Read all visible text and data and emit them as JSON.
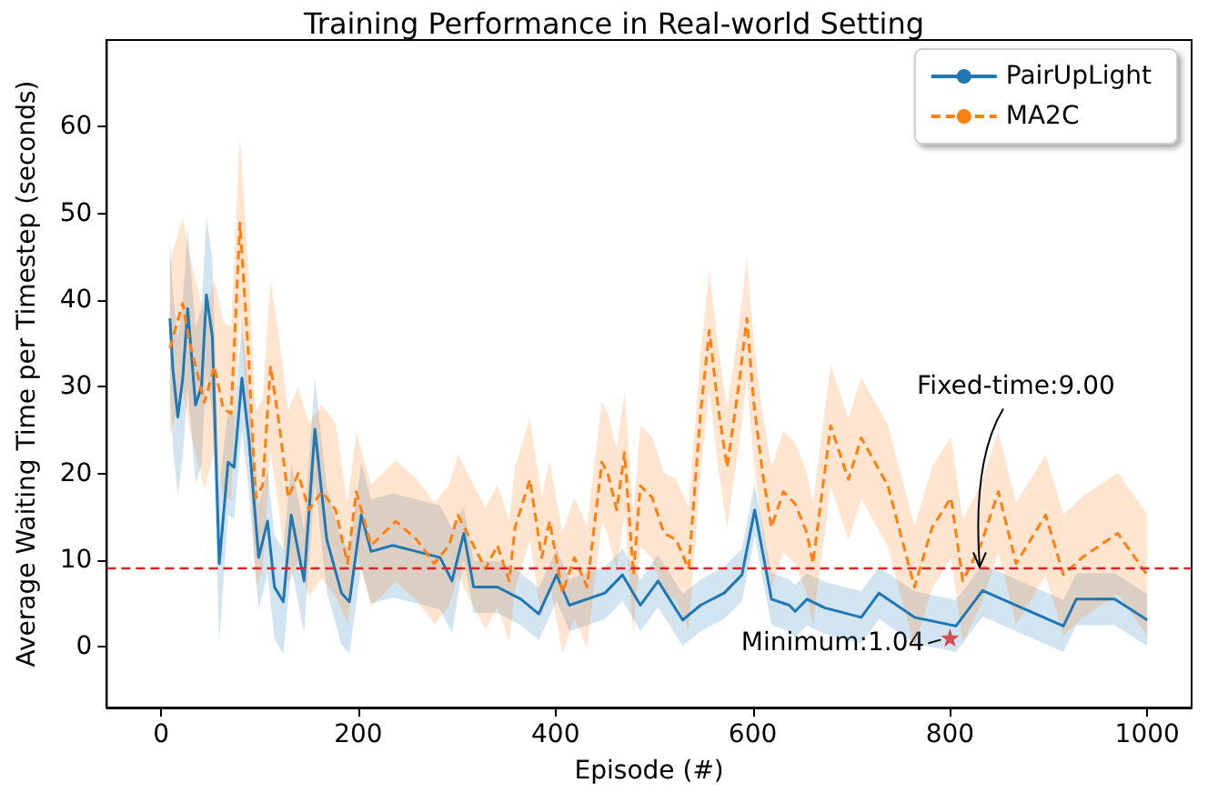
{
  "chart_data": {
    "type": "line",
    "title": "Training Performance in Real-world Setting",
    "xlabel": "Episode (#)",
    "ylabel": "Average Waiting Time per Timestep (seconds)",
    "xlim": [
      -55,
      1045
    ],
    "xticks": [
      0,
      200,
      400,
      600,
      800,
      1000
    ],
    "ylim": [
      -7,
      70
    ],
    "yticks": [
      0,
      10,
      20,
      30,
      40,
      50,
      60
    ],
    "grid": false,
    "legend": "top right",
    "marker": "none",
    "series": [
      {
        "name": "PairUpLight",
        "color": "#1f77b4",
        "line_style": "solid",
        "x": [
          9,
          12,
          17,
          22,
          27,
          35,
          41,
          46,
          52,
          59,
          68,
          74,
          82,
          89,
          99,
          108,
          115,
          124,
          132,
          145,
          156,
          168,
          183,
          191,
          203,
          213,
          235,
          259,
          283,
          295,
          307,
          317,
          341,
          365,
          383,
          401,
          414,
          450,
          468,
          486,
          504,
          529,
          547,
          571,
          589,
          602,
          619,
          637,
          643,
          655,
          673,
          710,
          728,
          764,
          806,
          833,
          867,
          915,
          928,
          967,
          1000
        ],
        "values": [
          37.9,
          32,
          26.5,
          31,
          39,
          27.9,
          30,
          40.6,
          35.8,
          9.6,
          21.3,
          20.7,
          31,
          24,
          10.3,
          14.5,
          6.9,
          5.2,
          15.2,
          7.6,
          25.1,
          12.4,
          6.2,
          5.2,
          15.2,
          11,
          11.7,
          11,
          10.3,
          7.6,
          13.1,
          6.9,
          6.9,
          5.5,
          3.8,
          8.3,
          4.8,
          6.2,
          8.3,
          4.8,
          7.6,
          3.1,
          4.8,
          6.2,
          8.3,
          15.8,
          5.5,
          4.8,
          4.1,
          5.5,
          4.5,
          3.4,
          6.2,
          3.4,
          2.4,
          6.5,
          4.8,
          2.4,
          5.5,
          5.5,
          3.1
        ],
        "lower": [
          28.9,
          23,
          17.5,
          22,
          30,
          18.9,
          21,
          31.6,
          26.8,
          0.6,
          15.3,
          14.7,
          25,
          18,
          4.3,
          8.5,
          0.9,
          -0.8,
          9.2,
          1.6,
          19.1,
          6.4,
          0.2,
          -0.8,
          9.2,
          5,
          5.7,
          5,
          4.3,
          1.6,
          10.1,
          3.9,
          3.9,
          2.5,
          0.8,
          5.3,
          1.8,
          3.2,
          5.3,
          1.8,
          4.6,
          0.1,
          1.8,
          3.2,
          5.3,
          12.8,
          2.5,
          1.8,
          1.1,
          2.5,
          1.5,
          0.4,
          3.2,
          0.4,
          -0.6,
          3.5,
          1.8,
          -0.6,
          2.5,
          2.5,
          0.1
        ],
        "upper": [
          46.9,
          41,
          35.5,
          40,
          48,
          36.9,
          39,
          49.6,
          44.8,
          18.6,
          27.3,
          26.7,
          37,
          30,
          16.3,
          20.5,
          12.9,
          11.2,
          21.2,
          13.6,
          31.1,
          18.4,
          12.2,
          11.2,
          21.2,
          17,
          17.7,
          17,
          16.3,
          13.6,
          16.1,
          9.9,
          9.9,
          8.5,
          6.8,
          11.3,
          7.8,
          9.2,
          11.3,
          7.8,
          10.6,
          6.1,
          7.8,
          9.2,
          11.3,
          18.8,
          8.5,
          7.8,
          7.1,
          8.5,
          7.5,
          6.4,
          9.2,
          6.4,
          5.4,
          9.5,
          7.8,
          5.4,
          8.5,
          8.5,
          6.1
        ]
      },
      {
        "name": "MA2C",
        "color": "#ff7f0e",
        "line_style": "dashed",
        "x": [
          9,
          14,
          22,
          29,
          35,
          44,
          54,
          63,
          71,
          80,
          89,
          96,
          103,
          111,
          120,
          129,
          139,
          150,
          163,
          177,
          189,
          198,
          213,
          238,
          259,
          277,
          292,
          301,
          329,
          341,
          353,
          359,
          374,
          386,
          394,
          407,
          419,
          432,
          447,
          453,
          462,
          470,
          479,
          486,
          498,
          510,
          522,
          535,
          547,
          556,
          565,
          574,
          586,
          594,
          601,
          610,
          619,
          631,
          643,
          655,
          661,
          679,
          697,
          710,
          737,
          764,
          782,
          801,
          813,
          831,
          849,
          867,
          897,
          915,
          934,
          970,
          1000
        ],
        "values": [
          34.4,
          36.5,
          39.6,
          35.1,
          32.4,
          28.2,
          32.4,
          27.5,
          26.9,
          48.9,
          33,
          17.2,
          18.6,
          32.4,
          25.5,
          17.2,
          20,
          15.8,
          17.9,
          15.8,
          9.6,
          17.9,
          11.7,
          14.5,
          12.4,
          9.6,
          11.7,
          15.2,
          9,
          11.7,
          7.6,
          13.8,
          19.3,
          10.3,
          14.5,
          6.2,
          10.3,
          6.9,
          21.3,
          20,
          15.8,
          22.4,
          8.3,
          18.6,
          17.2,
          13.1,
          12.4,
          9,
          26.9,
          36.5,
          27.5,
          20.7,
          30.3,
          37.9,
          28.2,
          20,
          13.8,
          17.9,
          16.5,
          13.1,
          9.6,
          25.5,
          19.3,
          24.1,
          18.6,
          6.9,
          13.8,
          17.2,
          7.6,
          11.7,
          17.9,
          9.6,
          15.2,
          8.3,
          10.3,
          13.1,
          8.3
        ],
        "lower": [
          24.4,
          26.5,
          29.6,
          25.1,
          22.4,
          18.2,
          22.4,
          17.5,
          16.9,
          38.9,
          23,
          7.2,
          8.6,
          22.4,
          15.5,
          7.2,
          10,
          5.8,
          7.9,
          5.8,
          2.6,
          10.9,
          4.7,
          7.5,
          5.4,
          2.6,
          4.7,
          8.2,
          2,
          4.7,
          0.6,
          6.8,
          12.3,
          3.3,
          7.5,
          -0.8,
          3.3,
          -0.1,
          14.3,
          13,
          8.8,
          15.4,
          1.3,
          11.6,
          10.2,
          6.1,
          5.4,
          2,
          19.9,
          29.5,
          20.5,
          13.7,
          23.3,
          30.9,
          21.2,
          13,
          6.8,
          10.9,
          9.5,
          6.1,
          2.6,
          18.5,
          12.3,
          17.1,
          11.6,
          -0.1,
          6.8,
          10.2,
          0.6,
          4.7,
          10.9,
          2.6,
          8.2,
          1.3,
          3.3,
          6.1,
          1.3
        ],
        "upper": [
          44.4,
          46.5,
          49.6,
          45.1,
          42.4,
          38.2,
          42.4,
          37.5,
          36.9,
          58.9,
          43,
          27.2,
          28.6,
          42.4,
          35.5,
          27.2,
          30,
          25.8,
          27.9,
          25.8,
          16.6,
          24.9,
          18.7,
          21.5,
          19.4,
          16.6,
          18.7,
          22.2,
          16,
          18.7,
          14.6,
          20.8,
          26.3,
          17.3,
          21.5,
          13.2,
          17.3,
          13.9,
          28.3,
          27,
          22.8,
          29.4,
          15.3,
          25.6,
          24.2,
          20.1,
          19.4,
          16,
          33.9,
          43.5,
          34.5,
          27.7,
          37.3,
          44.9,
          35.2,
          27,
          20.8,
          24.9,
          23.5,
          20.1,
          16.6,
          32.5,
          26.3,
          31.1,
          25.6,
          13.9,
          20.8,
          24.2,
          14.6,
          18.7,
          24.9,
          16.6,
          22.2,
          15.3,
          17.3,
          20.1,
          15.3
        ]
      },
      {
        "type": "scatter",
        "color": "#d62728",
        "marker": "star",
        "x": [
          800
        ],
        "values": [
          1.04
        ]
      }
    ],
    "ref_lines": [
      {
        "axis": "y",
        "value": 9,
        "color": "#d62728",
        "line_style": "dashed"
      }
    ],
    "annotations": [
      {
        "text": "Fixed-time:9.00",
        "x": 830,
        "y": 9
      },
      {
        "text": "Minimum:1.04",
        "x": 800,
        "y": 1.04
      }
    ]
  }
}
